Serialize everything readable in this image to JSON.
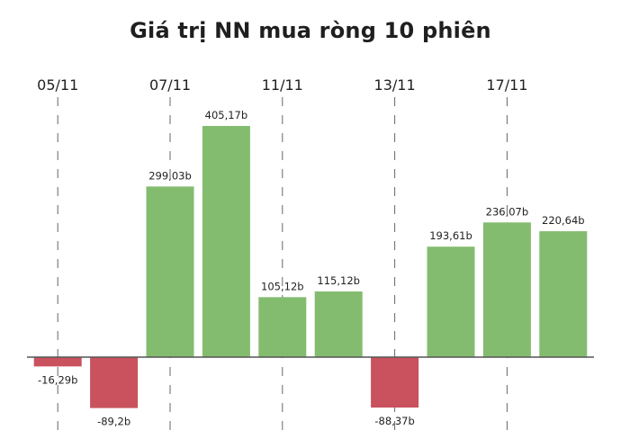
{
  "chart_data": {
    "type": "bar",
    "title": "Giá trị NN mua ròng 10 phiên",
    "xlabel": "",
    "ylabel": "",
    "x_tick_labels": [
      "05/11",
      "07/11",
      "11/11",
      "13/11",
      "17/11"
    ],
    "x_tick_bar_index": [
      0,
      2,
      4,
      6,
      8
    ],
    "categories": [
      "",
      "",
      "",
      "",
      "",
      "",
      "",
      "",
      "",
      ""
    ],
    "values": [
      -16.29,
      -89.2,
      299.03,
      405.17,
      105.12,
      115.12,
      -88.37,
      193.61,
      236.07,
      220.64
    ],
    "labels": [
      "-16,29b",
      "-89,2b",
      "299,03b",
      "405,17b",
      "105,12b",
      "115,12b",
      "-88,37b",
      "193,61b",
      "236,07b",
      "220,64b"
    ],
    "ylim": [
      -100,
      450
    ],
    "grid": false,
    "colors": {
      "positive": "#84bc6f",
      "negative": "#c9525e",
      "axis": "#555555",
      "tick_line": "#666666"
    }
  }
}
